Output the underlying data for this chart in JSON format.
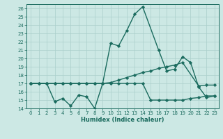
{
  "xlabel": "Humidex (Indice chaleur)",
  "background_color": "#cce8e4",
  "grid_color": "#aacfcb",
  "line_color": "#1a6b5e",
  "xlim": [
    -0.5,
    23.5
  ],
  "ylim": [
    14,
    26.5
  ],
  "yticks": [
    14,
    15,
    16,
    17,
    18,
    19,
    20,
    21,
    22,
    23,
    24,
    25,
    26
  ],
  "xticks": [
    0,
    1,
    2,
    3,
    4,
    5,
    6,
    7,
    8,
    9,
    10,
    11,
    12,
    13,
    14,
    15,
    16,
    17,
    18,
    19,
    20,
    21,
    22,
    23
  ],
  "series1_x": [
    0,
    2,
    3,
    4,
    5,
    6,
    7,
    8,
    9,
    10,
    11,
    12,
    13,
    14,
    16,
    17,
    18,
    19,
    20,
    21,
    22,
    23
  ],
  "series1_y": [
    17,
    17,
    14.8,
    15.2,
    14.3,
    15.6,
    15.4,
    14.0,
    17.0,
    21.8,
    21.5,
    23.3,
    25.3,
    26.2,
    21.0,
    18.5,
    18.7,
    20.2,
    19.5,
    16.6,
    15.3,
    15.5
  ],
  "series2_x": [
    0,
    1,
    2,
    3,
    4,
    5,
    6,
    7,
    8,
    9,
    10,
    11,
    12,
    13,
    14,
    15,
    16,
    17,
    18,
    19,
    21,
    22,
    23
  ],
  "series2_y": [
    17,
    17,
    17,
    17,
    17,
    17,
    17,
    17,
    17,
    17,
    17.1,
    17.4,
    17.7,
    18.0,
    18.3,
    18.5,
    18.8,
    19.0,
    19.2,
    19.5,
    16.7,
    16.8,
    16.8
  ],
  "series3_x": [
    0,
    1,
    2,
    3,
    4,
    5,
    6,
    7,
    8,
    9,
    10,
    11,
    12,
    13,
    14,
    15,
    16,
    17,
    18,
    19,
    20,
    21,
    22,
    23
  ],
  "series3_y": [
    17,
    17,
    17,
    17,
    17,
    17,
    17,
    17,
    17,
    17,
    17,
    17,
    17,
    17,
    17,
    15.0,
    15.0,
    15.0,
    15.0,
    15.0,
    15.2,
    15.3,
    15.5,
    15.5
  ],
  "marker": "D",
  "markersize": 2.2,
  "linewidth": 1.0
}
